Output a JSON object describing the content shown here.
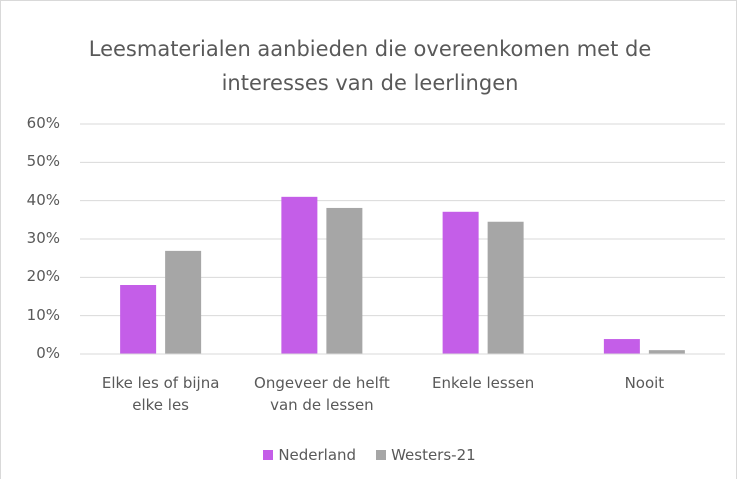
{
  "chart_data": {
    "type": "bar",
    "title": "Leesmaterialen aanbieden die overeenkomen met de interesses van de leerlingen",
    "categories": [
      "Elke les of bijna elke les",
      "Ongeveer de helft van de lessen",
      "Enkele lessen",
      "Nooit"
    ],
    "series": [
      {
        "name": "Nederland",
        "color": "#c45ee8",
        "values": [
          18,
          41,
          37.1,
          3.9
        ]
      },
      {
        "name": "Westers-21",
        "color": "#a6a6a6",
        "values": [
          26.9,
          38.1,
          34.5,
          1
        ]
      }
    ],
    "ylim": [
      0,
      60
    ],
    "yticks": [
      {
        "value": 0,
        "label": "0%"
      },
      {
        "value": 10,
        "label": "10%"
      },
      {
        "value": 20,
        "label": "20%"
      },
      {
        "value": 30,
        "label": "30%"
      },
      {
        "value": 40,
        "label": "40%"
      },
      {
        "value": 50,
        "label": "50%"
      },
      {
        "value": 60,
        "label": "60%"
      }
    ],
    "grid": true,
    "legend": "bottom"
  }
}
